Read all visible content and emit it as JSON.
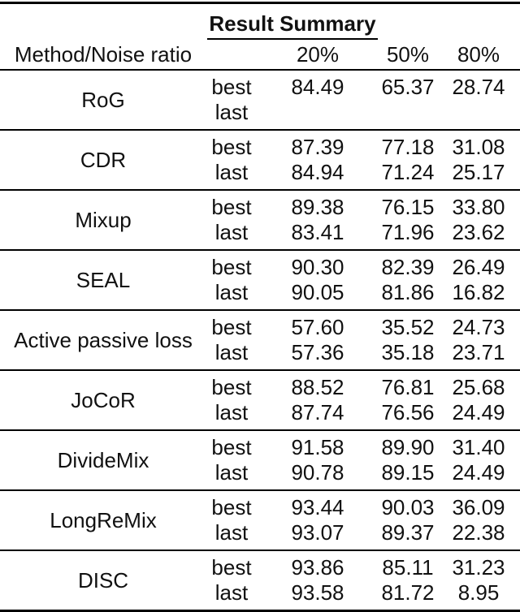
{
  "table": {
    "title": "Result Summary",
    "method_header": "Method/Noise ratio",
    "noise_columns": [
      "20%",
      "50%",
      "80%"
    ],
    "row_labels": [
      "best",
      "last"
    ],
    "groups": [
      {
        "method": "RoG",
        "best": [
          "84.49",
          "65.37",
          "28.74"
        ],
        "last": [
          "",
          "",
          ""
        ]
      },
      {
        "method": "CDR",
        "best": [
          "87.39",
          "77.18",
          "31.08"
        ],
        "last": [
          "84.94",
          "71.24",
          "25.17"
        ]
      },
      {
        "method": "Mixup",
        "best": [
          "89.38",
          "76.15",
          "33.80"
        ],
        "last": [
          "83.41",
          "71.96",
          "23.62"
        ]
      },
      {
        "method": "SEAL",
        "best": [
          "90.30",
          "82.39",
          "26.49"
        ],
        "last": [
          "90.05",
          "81.86",
          "16.82"
        ]
      },
      {
        "method": "Active passive loss",
        "best": [
          "57.60",
          "35.52",
          "24.73"
        ],
        "last": [
          "57.36",
          "35.18",
          "23.71"
        ]
      },
      {
        "method": "JoCoR",
        "best": [
          "88.52",
          "76.81",
          "25.68"
        ],
        "last": [
          "87.74",
          "76.56",
          "24.49"
        ]
      },
      {
        "method": "DivideMix",
        "best": [
          "91.58",
          "89.90",
          "31.40"
        ],
        "last": [
          "90.78",
          "89.15",
          "24.49"
        ]
      },
      {
        "method": "LongReMix",
        "best": [
          "93.44",
          "90.03",
          "36.09"
        ],
        "last": [
          "93.07",
          "89.37",
          "22.38"
        ]
      },
      {
        "method": "DISC",
        "best": [
          "93.86",
          "85.11",
          "31.23"
        ],
        "last": [
          "93.58",
          "81.72",
          "8.95"
        ]
      }
    ],
    "colors": {
      "text": "#111111",
      "rule": "#000000",
      "background": "#ffffff"
    }
  }
}
